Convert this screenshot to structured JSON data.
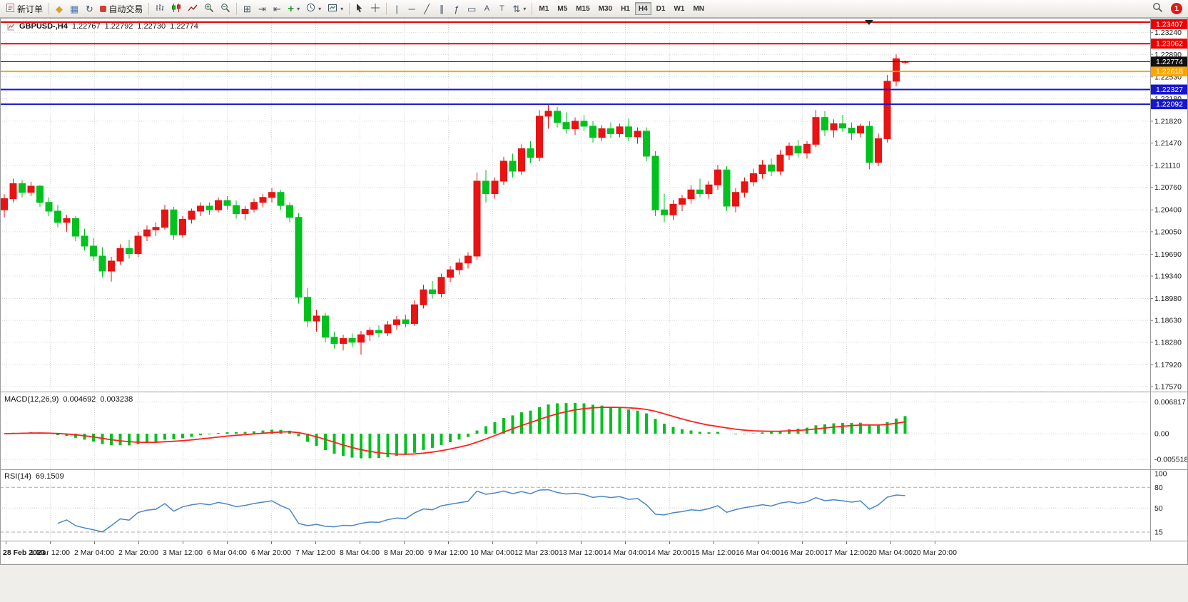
{
  "window": {
    "badge_count": "1"
  },
  "toolbar": {
    "new_order": "新订单",
    "autotrading": "自动交易",
    "timeframes": [
      "M1",
      "M5",
      "M15",
      "M30",
      "H1",
      "H4",
      "D1",
      "W1",
      "MN"
    ],
    "active_timeframe": "H4"
  },
  "main_chart": {
    "symbol_period": "GBPUSD-,H4",
    "open": "1.22767",
    "high": "1.22792",
    "low": "1.22730",
    "close": "1.22774"
  },
  "macd_panel": {
    "label": "MACD(12,26,9)",
    "main_value": "0.004692",
    "signal_value": "0.003238"
  },
  "rsi_panel": {
    "label": "RSI(14)",
    "value": "69.1509"
  },
  "chart_data": {
    "type": "candlestick",
    "symbol": "GBPUSD-",
    "period": "H4",
    "up_color": "#e81313",
    "down_color": "#00c11e",
    "grid_color": "#d8d8d8",
    "price_labels": [
      "1.23240",
      "1.22890",
      "1.22530",
      "1.22180",
      "1.21820",
      "1.21470",
      "1.21110",
      "1.20760",
      "1.20400",
      "1.20050",
      "1.19690",
      "1.19340",
      "1.18980",
      "1.18630",
      "1.18280",
      "1.17920",
      "1.17570"
    ],
    "levels": [
      {
        "price": 1.23407,
        "label": "1.23407",
        "color": "#f00000",
        "width": 2
      },
      {
        "price": 1.23062,
        "label": "1.23062",
        "color": "#f00000",
        "width": 2
      },
      {
        "price": 1.22618,
        "label": "1.22618",
        "color": "#ffa500",
        "width": 2
      },
      {
        "price": 1.22327,
        "label": "1.22327",
        "color": "#1616d0",
        "width": 2
      },
      {
        "price": 1.22092,
        "label": "1.22092",
        "color": "#1616d0",
        "width": 2
      }
    ],
    "bid_line": {
      "price": 1.22774,
      "label": "1.22774",
      "color": "#111111"
    },
    "time_labels": [
      "28 Feb 2023",
      "1 Mar 12:00",
      "2 Mar 04:00",
      "2 Mar 20:00",
      "3 Mar 12:00",
      "6 Mar 04:00",
      "6 Mar 20:00",
      "7 Mar 12:00",
      "8 Mar 04:00",
      "8 Mar 20:00",
      "9 Mar 12:00",
      "10 Mar 04:00",
      "12 Mar 23:00",
      "13 Mar 12:00",
      "14 Mar 04:00",
      "14 Mar 20:00",
      "15 Mar 12:00",
      "16 Mar 04:00",
      "16 Mar 20:00",
      "17 Mar 12:00",
      "20 Mar 04:00",
      "20 Mar 20:00"
    ],
    "candles": [
      [
        1.204,
        1.2065,
        1.2028,
        1.2058
      ],
      [
        1.2058,
        1.209,
        1.2052,
        1.2082
      ],
      [
        1.2082,
        1.2088,
        1.206,
        1.2068
      ],
      [
        1.2068,
        1.2085,
        1.2062,
        1.2078
      ],
      [
        1.2078,
        1.208,
        1.2045,
        1.2052
      ],
      [
        1.2052,
        1.206,
        1.203,
        1.2038
      ],
      [
        1.2038,
        1.2048,
        1.2012,
        1.202
      ],
      [
        1.202,
        1.2032,
        1.2005,
        1.2026
      ],
      [
        1.2026,
        1.203,
        1.199,
        1.1998
      ],
      [
        1.1998,
        1.201,
        1.1975,
        1.1982
      ],
      [
        1.1982,
        1.1995,
        1.1958,
        1.1966
      ],
      [
        1.1966,
        1.198,
        1.1932,
        1.1942
      ],
      [
        1.1942,
        1.1965,
        1.1925,
        1.1958
      ],
      [
        1.1958,
        1.1985,
        1.1952,
        1.1978
      ],
      [
        1.1978,
        1.1992,
        1.1962,
        1.197
      ],
      [
        1.197,
        1.2005,
        1.1965,
        1.1998
      ],
      [
        1.1998,
        1.2015,
        1.199,
        1.2008
      ],
      [
        1.2008,
        1.202,
        1.1998,
        1.2012
      ],
      [
        1.2012,
        1.2048,
        1.2008,
        1.204
      ],
      [
        1.204,
        1.2045,
        1.1992,
        1.2
      ],
      [
        1.2,
        1.203,
        1.1995,
        1.2025
      ],
      [
        1.2025,
        1.2042,
        1.2018,
        1.2038
      ],
      [
        1.2038,
        1.2052,
        1.203,
        1.2046
      ],
      [
        1.2046,
        1.2052,
        1.2032,
        1.204
      ],
      [
        1.204,
        1.206,
        1.2036,
        1.2055
      ],
      [
        1.2055,
        1.2062,
        1.204,
        1.2047
      ],
      [
        1.2047,
        1.2055,
        1.2026,
        1.2034
      ],
      [
        1.2034,
        1.2046,
        1.2024,
        1.2041
      ],
      [
        1.2041,
        1.2058,
        1.2036,
        1.2052
      ],
      [
        1.2052,
        1.2066,
        1.2044,
        1.206
      ],
      [
        1.206,
        1.2075,
        1.2052,
        1.2068
      ],
      [
        1.2068,
        1.2072,
        1.204,
        1.2047
      ],
      [
        1.2047,
        1.2052,
        1.202,
        1.2028
      ],
      [
        1.2028,
        1.2035,
        1.189,
        1.19
      ],
      [
        1.19,
        1.1915,
        1.1852,
        1.1862
      ],
      [
        1.1862,
        1.188,
        1.1845,
        1.187
      ],
      [
        1.187,
        1.1875,
        1.1828,
        1.1836
      ],
      [
        1.1836,
        1.1845,
        1.1818,
        1.1826
      ],
      [
        1.1826,
        1.184,
        1.1815,
        1.1834
      ],
      [
        1.1834,
        1.1842,
        1.182,
        1.1828
      ],
      [
        1.1828,
        1.1846,
        1.1808,
        1.184
      ],
      [
        1.184,
        1.1852,
        1.183,
        1.1847
      ],
      [
        1.1847,
        1.1855,
        1.1836,
        1.1843
      ],
      [
        1.1843,
        1.1862,
        1.1838,
        1.1856
      ],
      [
        1.1856,
        1.187,
        1.1848,
        1.1864
      ],
      [
        1.1864,
        1.1872,
        1.1852,
        1.1858
      ],
      [
        1.1858,
        1.1895,
        1.1854,
        1.1888
      ],
      [
        1.1888,
        1.192,
        1.1882,
        1.1912
      ],
      [
        1.1912,
        1.1926,
        1.1898,
        1.1906
      ],
      [
        1.1906,
        1.1938,
        1.19,
        1.1932
      ],
      [
        1.1932,
        1.195,
        1.1924,
        1.1944
      ],
      [
        1.1944,
        1.1962,
        1.1936,
        1.1955
      ],
      [
        1.1955,
        1.1972,
        1.1946,
        1.1966
      ],
      [
        1.1966,
        1.21,
        1.196,
        1.2086
      ],
      [
        1.2086,
        1.2104,
        1.2052,
        1.2066
      ],
      [
        1.2066,
        1.2092,
        1.2058,
        1.2086
      ],
      [
        1.2086,
        1.2125,
        1.208,
        1.2118
      ],
      [
        1.2118,
        1.213,
        1.2092,
        1.2102
      ],
      [
        1.2102,
        1.2145,
        1.2096,
        1.2138
      ],
      [
        1.2138,
        1.215,
        1.2115,
        1.2124
      ],
      [
        1.2124,
        1.22,
        1.2118,
        1.219
      ],
      [
        1.219,
        1.2208,
        1.217,
        1.2198
      ],
      [
        1.2198,
        1.2205,
        1.2172,
        1.218
      ],
      [
        1.218,
        1.2196,
        1.2162,
        1.217
      ],
      [
        1.217,
        1.2188,
        1.216,
        1.2182
      ],
      [
        1.2182,
        1.2192,
        1.2166,
        1.2174
      ],
      [
        1.2174,
        1.2182,
        1.2148,
        1.2156
      ],
      [
        1.2156,
        1.2176,
        1.215,
        1.217
      ],
      [
        1.217,
        1.218,
        1.2155,
        1.2162
      ],
      [
        1.2162,
        1.2178,
        1.2156,
        1.2173
      ],
      [
        1.2173,
        1.2186,
        1.215,
        1.2157
      ],
      [
        1.2157,
        1.2172,
        1.2146,
        1.2166
      ],
      [
        1.2166,
        1.2172,
        1.2118,
        1.2126
      ],
      [
        1.2126,
        1.2134,
        1.203,
        1.204
      ],
      [
        1.204,
        1.2066,
        1.202,
        1.2032
      ],
      [
        1.2032,
        1.2056,
        1.2024,
        1.2049
      ],
      [
        1.2049,
        1.2064,
        1.2038,
        1.2058
      ],
      [
        1.2058,
        1.208,
        1.205,
        1.2072
      ],
      [
        1.2072,
        1.209,
        1.206,
        1.2066
      ],
      [
        1.2066,
        1.2086,
        1.2058,
        1.208
      ],
      [
        1.208,
        1.2112,
        1.2072,
        1.2104
      ],
      [
        1.2104,
        1.211,
        1.2038,
        1.2046
      ],
      [
        1.2046,
        1.2075,
        1.2036,
        1.2068
      ],
      [
        1.2068,
        1.2092,
        1.206,
        1.2085
      ],
      [
        1.2085,
        1.2106,
        1.2078,
        1.2098
      ],
      [
        1.2098,
        1.212,
        1.209,
        1.2112
      ],
      [
        1.2112,
        1.2122,
        1.2094,
        1.2102
      ],
      [
        1.2102,
        1.2136,
        1.2096,
        1.2128
      ],
      [
        1.2128,
        1.2148,
        1.212,
        1.2142
      ],
      [
        1.2142,
        1.2152,
        1.2124,
        1.2131
      ],
      [
        1.2131,
        1.215,
        1.2122,
        1.2145
      ],
      [
        1.2145,
        1.22,
        1.214,
        1.2188
      ],
      [
        1.2188,
        1.2198,
        1.2158,
        1.2168
      ],
      [
        1.2168,
        1.2185,
        1.2156,
        1.2178
      ],
      [
        1.2178,
        1.2192,
        1.2165,
        1.2171
      ],
      [
        1.2171,
        1.218,
        1.2152,
        1.2163
      ],
      [
        1.2163,
        1.2178,
        1.2156,
        1.2174
      ],
      [
        1.2174,
        1.2182,
        1.2105,
        1.2116
      ],
      [
        1.2116,
        1.2162,
        1.211,
        1.2154
      ],
      [
        1.2154,
        1.2256,
        1.2148,
        1.2246
      ],
      [
        1.2246,
        1.2289,
        1.2238,
        1.2282
      ],
      [
        1.22767,
        1.22792,
        1.2273,
        1.22774
      ]
    ],
    "macd": {
      "hist_color": "#00c11e",
      "signal_color": "#ff2020",
      "params": [
        12,
        26,
        9
      ],
      "scale_labels": [
        "0.006817",
        "0.00",
        "-0.005518"
      ]
    },
    "rsi": {
      "line_color": "#4a86c8",
      "period": 14,
      "scale_labels": [
        "100",
        "80",
        "50",
        "15"
      ],
      "level_lines": [
        80,
        50,
        15
      ]
    }
  }
}
